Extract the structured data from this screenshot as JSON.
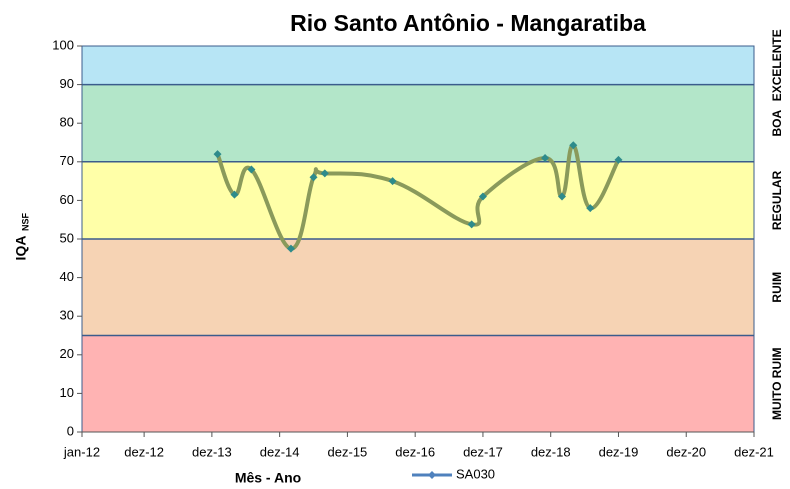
{
  "chart_data": {
    "type": "line",
    "title": "Rio Santo Antônio - Mangaratiba",
    "x_label": "Mês - Ano",
    "y_label": "IQA",
    "y_label_sub": "NSF",
    "x": [
      "2014-01",
      "2014-04",
      "2014-07",
      "2015-02",
      "2015-06",
      "2015-08",
      "2016-08",
      "2017-10",
      "2017-12",
      "2018-11",
      "2019-02",
      "2019-04",
      "2019-07",
      "2019-12"
    ],
    "series": [
      {
        "name": "SA030",
        "color": "#8a9a5b",
        "marker_color": "#2e8b8b",
        "legend_color": "#4f81bd",
        "values": [
          72,
          61.5,
          68,
          47.5,
          66,
          67,
          65,
          53.8,
          61,
          71,
          61,
          74.3,
          58,
          70.5
        ]
      }
    ],
    "xlim": [
      "2012-01",
      "2021-12"
    ],
    "xticks": [
      {
        "value": "2012-01",
        "label": "jan-12"
      },
      {
        "value": "2012-12",
        "label": "dez-12"
      },
      {
        "value": "2013-12",
        "label": "dez-13"
      },
      {
        "value": "2014-12",
        "label": "dez-14"
      },
      {
        "value": "2015-12",
        "label": "dez-15"
      },
      {
        "value": "2016-12",
        "label": "dez-16"
      },
      {
        "value": "2017-12",
        "label": "dez-17"
      },
      {
        "value": "2018-12",
        "label": "dez-18"
      },
      {
        "value": "2019-12",
        "label": "dez-19"
      },
      {
        "value": "2020-12",
        "label": "dez-20"
      },
      {
        "value": "2021-12",
        "label": "dez-21"
      }
    ],
    "ylim": [
      0,
      100
    ],
    "yticks": [
      0,
      10,
      20,
      30,
      40,
      50,
      60,
      70,
      80,
      90,
      100
    ],
    "bands": [
      {
        "from": 0,
        "to": 25,
        "label": "MUITO RUIM",
        "color": "#ffb3b3"
      },
      {
        "from": 25,
        "to": 50,
        "label": "RUIM",
        "color": "#f6d3b4"
      },
      {
        "from": 50,
        "to": 70,
        "label": "REGULAR",
        "color": "#ffffa8"
      },
      {
        "from": 70,
        "to": 90,
        "label": "BOA",
        "color": "#b3e6c9"
      },
      {
        "from": 90,
        "to": 100,
        "label": "EXCELENTE",
        "color": "#b7e5f5"
      }
    ]
  }
}
